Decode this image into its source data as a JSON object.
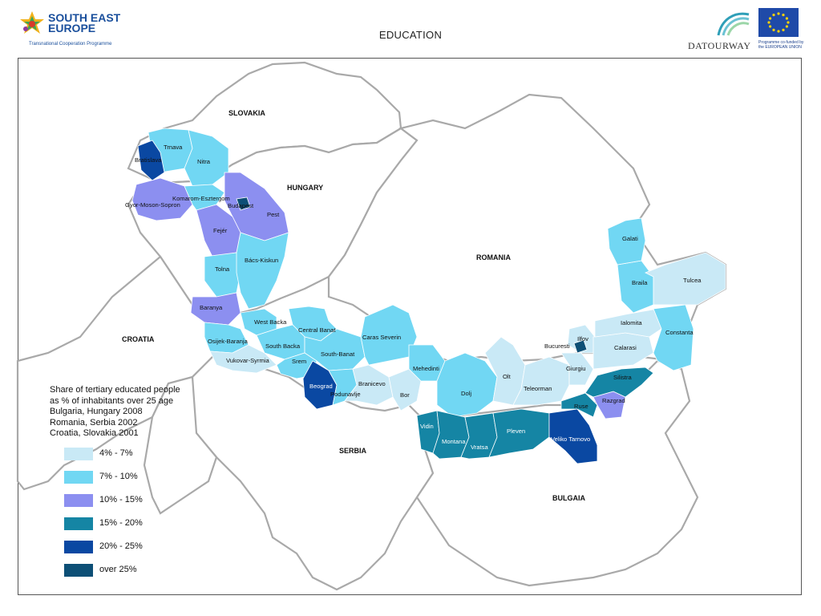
{
  "header": {
    "logo_left": {
      "title": "SOUTH EAST EUROPE",
      "subtitle": "Transnational Cooperation Programme"
    },
    "page_title": "EDUCATION",
    "logo_dat": {
      "text": "DATOURWAY"
    },
    "logo_eu": {
      "caption": "Programme co-funded by the EUROPEAN UNION"
    }
  },
  "colors": {
    "4-7": "#c9e9f6",
    "7-10": "#71d7f3",
    "10-15": "#8c8ff0",
    "15-20": "#1585a4",
    "20-25": "#0a48a2",
    "over25": "#0d4f76",
    "border": "#a9a9a9"
  },
  "countries": {
    "slovakia": "SLOVAKIA",
    "hungary": "HUNGARY",
    "romania": "ROMANIA",
    "croatia": "CROATIA",
    "serbia": "SERBIA",
    "bulgaria": "BULGAIA"
  },
  "regions": [
    {
      "name": "Bratislava",
      "class": "20-25"
    },
    {
      "name": "Trnava",
      "class": "7-10"
    },
    {
      "name": "Nitra",
      "class": "7-10"
    },
    {
      "name": "Gyor-Moson-Sopron",
      "class": "10-15"
    },
    {
      "name": "Komarom-Esztergom",
      "class": "7-10"
    },
    {
      "name": "Budapest",
      "class": "over25"
    },
    {
      "name": "Pest",
      "class": "10-15"
    },
    {
      "name": "Fejer",
      "class": "10-15"
    },
    {
      "name": "Tolna",
      "class": "7-10"
    },
    {
      "name": "Bacs-Kiskun",
      "class": "7-10"
    },
    {
      "name": "Baranya",
      "class": "10-15"
    },
    {
      "name": "Osijek-Baranja",
      "class": "7-10"
    },
    {
      "name": "Vukovar-Syrmia",
      "class": "4-7"
    },
    {
      "name": "West Backa",
      "class": "7-10"
    },
    {
      "name": "Central Banat",
      "class": "7-10"
    },
    {
      "name": "South Backa",
      "class": "7-10"
    },
    {
      "name": "South Banat",
      "class": "7-10"
    },
    {
      "name": "Srem",
      "class": "7-10"
    },
    {
      "name": "Beograd",
      "class": "20-25"
    },
    {
      "name": "Podunavlje",
      "class": "7-10"
    },
    {
      "name": "Branicevo",
      "class": "4-7"
    },
    {
      "name": "Bor",
      "class": "4-7"
    },
    {
      "name": "Caras Severin",
      "class": "7-10"
    },
    {
      "name": "Mehedinti",
      "class": "7-10"
    },
    {
      "name": "Dolj",
      "class": "7-10"
    },
    {
      "name": "Olt",
      "class": "4-7"
    },
    {
      "name": "Teleorman",
      "class": "4-7"
    },
    {
      "name": "Giurgiu",
      "class": "4-7"
    },
    {
      "name": "Ilfov",
      "class": "4-7"
    },
    {
      "name": "Bucuresti",
      "class": "over25"
    },
    {
      "name": "Calarasi",
      "class": "4-7"
    },
    {
      "name": "Ialomita",
      "class": "4-7"
    },
    {
      "name": "Constanta",
      "class": "7-10"
    },
    {
      "name": "Braila",
      "class": "7-10"
    },
    {
      "name": "Galati",
      "class": "7-10"
    },
    {
      "name": "Tulcea",
      "class": "4-7"
    },
    {
      "name": "Silistra",
      "class": "15-20"
    },
    {
      "name": "Razgrad",
      "class": "10-15"
    },
    {
      "name": "Ruse",
      "class": "15-20"
    },
    {
      "name": "Veliko Tarnovo",
      "class": "20-25"
    },
    {
      "name": "Pleven",
      "class": "15-20"
    },
    {
      "name": "Vratsa",
      "class": "15-20"
    },
    {
      "name": "Montana",
      "class": "15-20"
    },
    {
      "name": "Vidin",
      "class": "15-20"
    }
  ],
  "labels": {
    "bratislava": "Bratislava",
    "trnava": "Trnava",
    "nitra": "Nitra",
    "gyor": "Gyor-Moson-Sopron",
    "komarom": "Komarom-Esztergom",
    "budapest": "Budapest",
    "pest": "Pest",
    "fejer": "Fejér",
    "tolna": "Tolna",
    "bacs": "Bács-Kiskun",
    "baranya": "Baranya",
    "osijek": "Osijek-Baranja",
    "vukovar": "Vukovar-Syrmia",
    "westbacka": "West Backa",
    "centralbanat": "Central Banat",
    "southbacka": "South Backa",
    "southbanat": "South-Banat",
    "srem": "Srem",
    "beograd": "Beograd",
    "podunavlje": "Podunavlje",
    "branicevo": "Branicevo",
    "bor": "Bor",
    "caras": "Caras Severin",
    "mehedinti": "Mehedinti",
    "dolj": "Dolj",
    "olt": "Olt",
    "teleorman": "Teleorman",
    "giurgiu": "Giurgiu",
    "ilfov": "Ilfov",
    "bucuresti": "Bucuresti",
    "calarasi": "Calarasi",
    "ialomita": "Ialomita",
    "constanta": "Constanta",
    "braila": "Braila",
    "galati": "Galati",
    "tulcea": "Tulcea",
    "silistra": "Silistra",
    "razgrad": "Razgrad",
    "ruse": "Ruse",
    "veliko": "Veliko Tarnovo",
    "pleven": "Pleven",
    "vratsa": "Vratsa",
    "montana": "Montana",
    "vidin": "Vidin"
  },
  "legend": {
    "title": "Share of tertiary educated people\nas % of inhabitants over 25 age\nBulgaria, Hungary 2008\nRomania, Serbia 2002\nCroatia, Slovakia 2001",
    "items": [
      {
        "label": "4% - 7%",
        "color": "#c9e9f6"
      },
      {
        "label": "7% - 10%",
        "color": "#71d7f3"
      },
      {
        "label": "10% - 15%",
        "color": "#8c8ff0"
      },
      {
        "label": "15% - 20%",
        "color": "#1585a4"
      },
      {
        "label": "20% - 25%",
        "color": "#0a48a2"
      },
      {
        "label": "over 25%",
        "color": "#0d4f76"
      }
    ]
  }
}
